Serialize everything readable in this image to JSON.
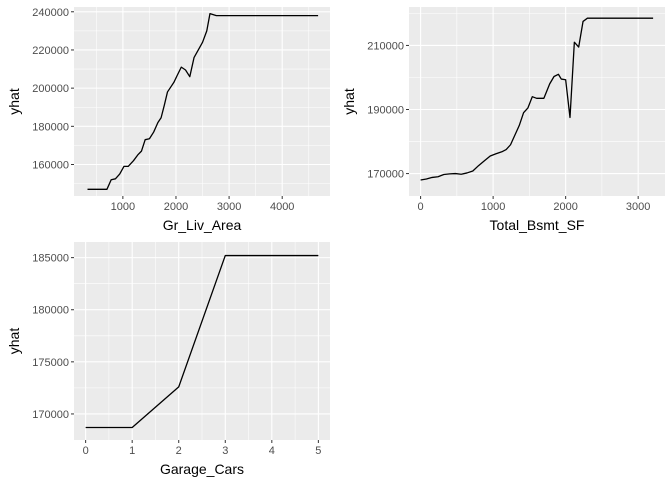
{
  "style": {
    "panel_bg": "#ebebeb",
    "grid_major": "#ffffff",
    "line_color": "#000000",
    "tick_text_color": "#4d4d4d",
    "axis_tick_color": "#333333"
  },
  "chart_data": [
    {
      "type": "line",
      "id": "gr-liv-area",
      "xlabel": "Gr_Liv_Area",
      "ylabel": "yhat",
      "xlim": [
        80,
        4900
      ],
      "ylim": [
        143500,
        242500
      ],
      "xticks": [
        1000,
        2000,
        3000,
        4000
      ],
      "xtick_labels": [
        "1000",
        "2000",
        "3000",
        "4000"
      ],
      "yticks": [
        160000,
        180000,
        200000,
        220000,
        240000
      ],
      "ytick_labels": [
        "160000",
        "180000",
        "200000",
        "220000",
        "240000"
      ],
      "grid": true,
      "x": [
        334,
        480,
        600,
        700,
        780,
        860,
        940,
        1020,
        1100,
        1150,
        1200,
        1280,
        1350,
        1420,
        1500,
        1580,
        1660,
        1720,
        1780,
        1840,
        1900,
        1960,
        2020,
        2100,
        2180,
        2260,
        2340,
        2420,
        2500,
        2580,
        2640,
        2700,
        2760,
        2820,
        2880,
        2950,
        3100,
        4676
      ],
      "y": [
        147000,
        147000,
        147000,
        147000,
        152000,
        152500,
        155000,
        159000,
        159000,
        160500,
        162000,
        165000,
        167000,
        173000,
        173500,
        177000,
        182000,
        184500,
        191000,
        198000,
        200500,
        203000,
        206500,
        211000,
        209500,
        206000,
        216000,
        220000,
        224000,
        230000,
        239000,
        238500,
        238000,
        238000,
        238000,
        238000,
        238000,
        238000
      ]
    },
    {
      "type": "line",
      "id": "total-bsmt-sf",
      "xlabel": "Total_Bsmt_SF",
      "ylabel": "yhat",
      "xlim": [
        -160,
        3370
      ],
      "ylim": [
        163000,
        222000
      ],
      "xticks": [
        0,
        1000,
        2000,
        3000
      ],
      "xtick_labels": [
        "0",
        "1000",
        "2000",
        "3000"
      ],
      "yticks": [
        170000,
        190000,
        210000
      ],
      "ytick_labels": [
        "170000",
        "190000",
        "210000"
      ],
      "grid": true,
      "x": [
        0,
        80,
        160,
        240,
        320,
        400,
        480,
        560,
        640,
        720,
        800,
        880,
        960,
        1040,
        1120,
        1180,
        1240,
        1300,
        1360,
        1420,
        1480,
        1540,
        1600,
        1700,
        1780,
        1840,
        1900,
        1940,
        2000,
        2060,
        2120,
        2180,
        2240,
        2300,
        2500,
        2800,
        3206
      ],
      "y": [
        168000,
        168300,
        168800,
        169000,
        169700,
        169900,
        170000,
        169800,
        170200,
        170800,
        172500,
        174000,
        175500,
        176200,
        176800,
        177500,
        179000,
        182000,
        185000,
        189000,
        190500,
        194000,
        193500,
        193500,
        198000,
        200300,
        201000,
        199500,
        199300,
        187500,
        211000,
        209500,
        217500,
        218500,
        218500,
        218500,
        218500
      ]
    },
    {
      "type": "line",
      "id": "garage-cars",
      "xlabel": "Garage_Cars",
      "ylabel": "yhat",
      "xlim": [
        -0.25,
        5.25
      ],
      "ylim": [
        167500,
        186500
      ],
      "xticks": [
        0,
        1,
        2,
        3,
        4,
        5
      ],
      "xtick_labels": [
        "0",
        "1",
        "2",
        "3",
        "4",
        "5"
      ],
      "yticks": [
        170000,
        175000,
        180000,
        185000
      ],
      "ytick_labels": [
        "170000",
        "175000",
        "180000",
        "185000"
      ],
      "grid": true,
      "x": [
        0,
        1,
        2,
        3,
        4,
        5
      ],
      "y": [
        168700,
        168700,
        172600,
        185200,
        185200,
        185200
      ]
    }
  ]
}
